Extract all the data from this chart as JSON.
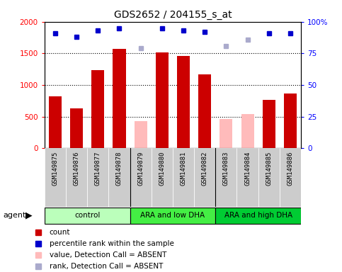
{
  "title": "GDS2652 / 204155_s_at",
  "samples": [
    "GSM149875",
    "GSM149876",
    "GSM149877",
    "GSM149878",
    "GSM149879",
    "GSM149880",
    "GSM149881",
    "GSM149882",
    "GSM149883",
    "GSM149884",
    "GSM149885",
    "GSM149886"
  ],
  "groups": [
    {
      "label": "control",
      "color": "#bbffbb",
      "start": 0,
      "end": 4
    },
    {
      "label": "ARA and low DHA",
      "color": "#44ee44",
      "start": 4,
      "end": 8
    },
    {
      "label": "ARA and high DHA",
      "color": "#00cc33",
      "start": 8,
      "end": 12
    }
  ],
  "bar_values": [
    820,
    630,
    1230,
    1570,
    null,
    1510,
    1460,
    1170,
    null,
    null,
    760,
    860
  ],
  "absent_values": [
    null,
    null,
    null,
    null,
    430,
    null,
    null,
    null,
    460,
    540,
    null,
    null
  ],
  "rank_values": [
    91,
    88,
    93,
    95,
    null,
    95,
    93,
    92,
    null,
    null,
    91,
    91
  ],
  "absent_rank_values": [
    null,
    null,
    null,
    null,
    79,
    null,
    null,
    null,
    81,
    86,
    null,
    null
  ],
  "bar_color": "#cc0000",
  "absent_bar_color": "#ffbbbb",
  "rank_color": "#0000cc",
  "absent_rank_color": "#aaaacc",
  "ylim": [
    0,
    2000
  ],
  "y2lim": [
    0,
    100
  ],
  "yticks": [
    0,
    500,
    1000,
    1500,
    2000
  ],
  "y2ticks": [
    0,
    25,
    50,
    75,
    100
  ],
  "sample_bg": "#cccccc",
  "legend_items": [
    {
      "color": "#cc0000",
      "label": "count"
    },
    {
      "color": "#0000cc",
      "label": "percentile rank within the sample"
    },
    {
      "color": "#ffbbbb",
      "label": "value, Detection Call = ABSENT"
    },
    {
      "color": "#aaaacc",
      "label": "rank, Detection Call = ABSENT"
    }
  ]
}
